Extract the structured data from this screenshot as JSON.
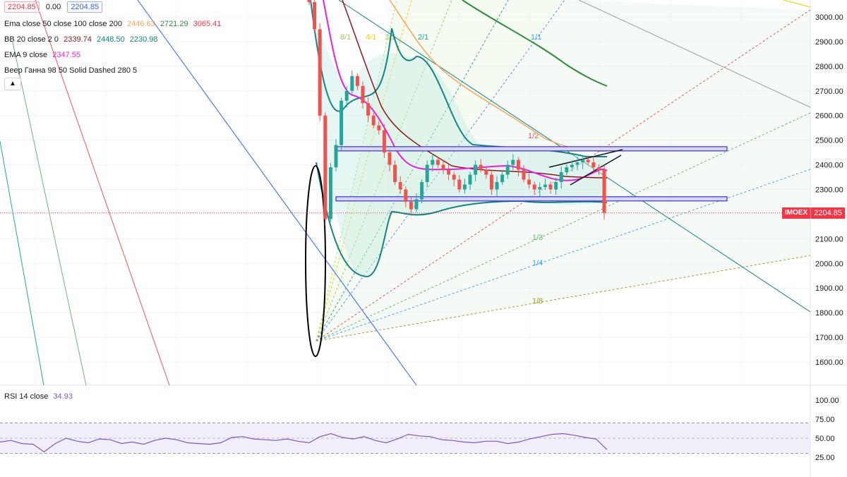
{
  "header": {
    "price_box_1": "2204.85",
    "change_text": "0.00",
    "price_box_2": "2204.85"
  },
  "legend": {
    "ema": {
      "label": "Ema close 50 close 100 close 200",
      "v1": "2446.63",
      "v2": "2721.29",
      "v3": "3065.41",
      "c1": "#f7a35c",
      "c2": "#2e8b3a",
      "c3": "#f23645"
    },
    "bb": {
      "label": "BB 20 close 2 0",
      "v1": "2339.74",
      "v2": "2448.50",
      "v3": "2230.98",
      "c1": "#8b1a1a",
      "c2": "#138484",
      "c3": "#138484"
    },
    "ema9": {
      "label": "EMA 9 close",
      "v1": "2347.55",
      "c1": "#e91ee0"
    },
    "gann": {
      "label": "Веер Ганна 98 50 Solid Dashed 280 5"
    },
    "collapse_icon": "chevron-up-icon"
  },
  "rsi": {
    "label": "RSI 14 close",
    "value": "34.93",
    "color": "#7e57c2",
    "ticks": [
      "100.00",
      "75.00",
      "50.00",
      "25.00"
    ]
  },
  "last_price": {
    "symbol": "IMOEX",
    "value": "2204.85",
    "color": "#f23645"
  },
  "chart_data": {
    "type": "candlestick",
    "y_ticks": [
      "3000.00",
      "2900.00",
      "2800.00",
      "2700.00",
      "2600.00",
      "2500.00",
      "2400.00",
      "2300.00",
      "2200.00",
      "2100.00",
      "2000.00",
      "1900.00",
      "1800.00",
      "1700.00",
      "1600.00"
    ],
    "ylim": [
      1520,
      3060
    ],
    "gann_labels": [
      "8/1",
      "4/1",
      "3/1",
      "2/1",
      "1/1",
      "1/2",
      "1/3",
      "1/4",
      "1/8"
    ],
    "levels": {
      "resistance": 2465,
      "support": 2262
    },
    "close_series": [
      3060,
      2950,
      2600,
      2180,
      2390,
      2480,
      2660,
      2700,
      2760,
      2720,
      2650,
      2600,
      2560,
      2540,
      2450,
      2400,
      2330,
      2300,
      2250,
      2220,
      2260,
      2330,
      2400,
      2420,
      2400,
      2380,
      2360,
      2340,
      2300,
      2320,
      2360,
      2400,
      2380,
      2360,
      2300,
      2330,
      2360,
      2400,
      2420,
      2380,
      2340,
      2320,
      2300,
      2310,
      2320,
      2300,
      2330,
      2370,
      2390,
      2400,
      2410,
      2420,
      2410,
      2390,
      2380,
      2205
    ],
    "rsi_values": [
      45,
      47,
      43,
      42,
      32,
      43,
      50,
      46,
      44,
      49,
      48,
      43,
      45,
      42,
      47,
      50,
      48,
      44,
      43,
      42,
      44,
      51,
      52,
      49,
      48,
      47,
      49,
      46,
      44,
      52,
      56,
      51,
      49,
      52,
      47,
      44,
      49,
      55,
      53,
      52,
      48,
      47,
      45,
      44,
      46,
      46,
      43,
      45,
      49,
      52,
      55,
      56,
      54,
      51,
      49,
      35
    ]
  }
}
